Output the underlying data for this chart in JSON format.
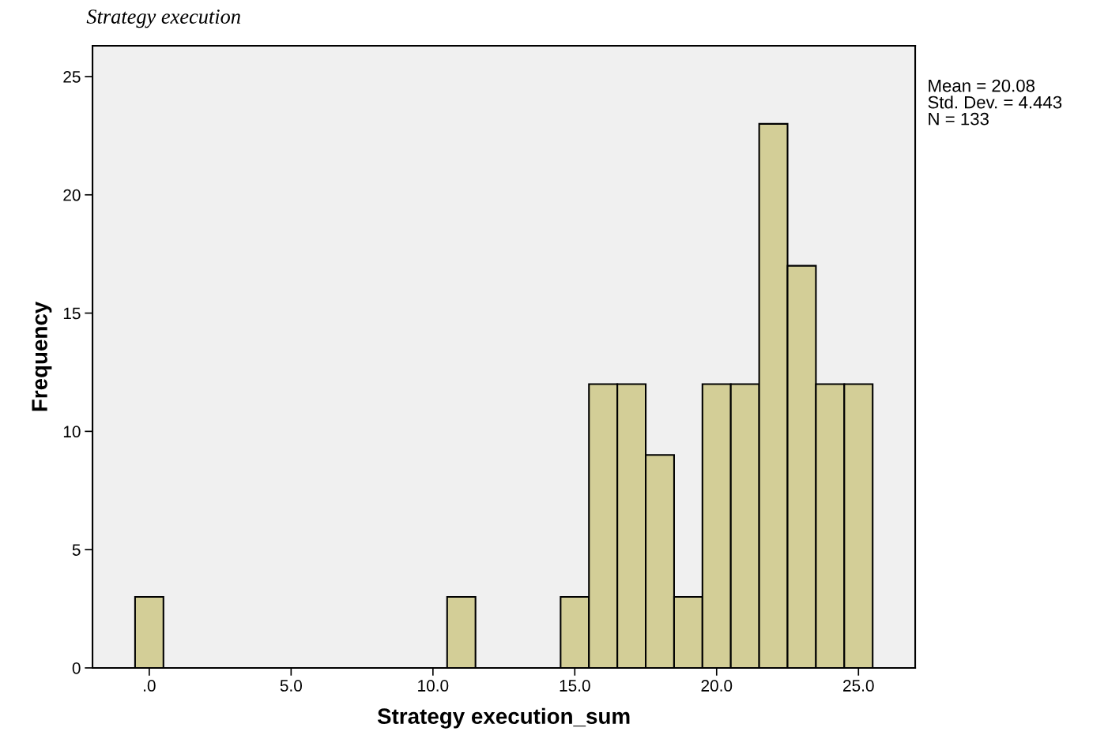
{
  "chart_data": {
    "type": "histogram",
    "title": "Strategy execution",
    "xlabel": "Strategy execution_sum",
    "ylabel": "Frequency",
    "bins": [
      -0.5,
      0.5,
      1.5,
      2.5,
      3.5,
      4.5,
      5.5,
      6.5,
      7.5,
      8.5,
      9.5,
      10.5,
      11.5,
      12.5,
      13.5,
      14.5,
      15.5,
      16.5,
      17.5,
      18.5,
      19.5,
      20.5,
      21.5,
      22.5,
      23.5,
      24.5,
      25.5
    ],
    "values": [
      3,
      0,
      0,
      0,
      0,
      0,
      0,
      0,
      0,
      0,
      0,
      3,
      0,
      0,
      0,
      3,
      12,
      12,
      9,
      3,
      12,
      12,
      23,
      17,
      12,
      12
    ],
    "color": "#d3ce97",
    "xlim": [
      -2,
      27
    ],
    "ylim": [
      0,
      26.3
    ],
    "xticks": [
      {
        "value": 0,
        "label": ".0"
      },
      {
        "value": 5,
        "label": "5.0"
      },
      {
        "value": 10,
        "label": "10.0"
      },
      {
        "value": 15,
        "label": "15.0"
      },
      {
        "value": 20,
        "label": "20.0"
      },
      {
        "value": 25,
        "label": "25.0"
      }
    ],
    "yticks": [
      0,
      5,
      10,
      15,
      20,
      25
    ],
    "grid": false,
    "legend": false,
    "annotations": [
      "Mean = 20.08",
      "Std. Dev. = 4.443",
      "N = 133"
    ]
  }
}
